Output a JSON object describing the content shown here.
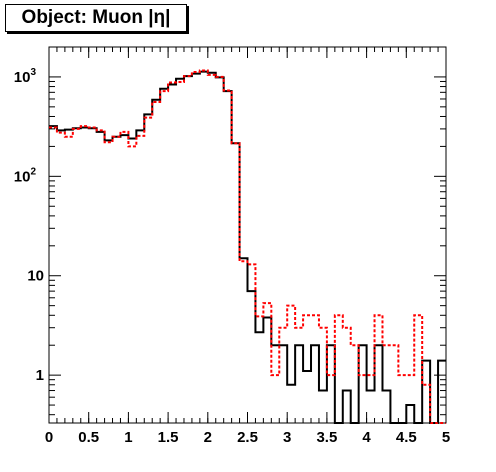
{
  "chart_data": {
    "type": "line",
    "title": "Object: Muon |η|",
    "xlabel": "",
    "ylabel": "",
    "xlim": [
      0,
      5
    ],
    "ylim": [
      0.33,
      2000
    ],
    "yscale": "log",
    "grid": false,
    "bin_width": 0.1,
    "bin_edges_start": 0,
    "x_ticks": [
      "0",
      "0.5",
      "1",
      "1.5",
      "2",
      "2.5",
      "3",
      "3.5",
      "4",
      "4.5",
      "5"
    ],
    "x_tick_values": [
      0,
      0.5,
      1,
      1.5,
      2,
      2.5,
      3,
      3.5,
      4,
      4.5,
      5
    ],
    "y_ticks": [
      {
        "value": 1,
        "base": "1",
        "exp": ""
      },
      {
        "value": 10,
        "base": "10",
        "exp": ""
      },
      {
        "value": 100,
        "base": "10",
        "exp": "2"
      },
      {
        "value": 1000,
        "base": "10",
        "exp": "3"
      }
    ],
    "series": [
      {
        "color": "#000000",
        "style": "solid",
        "values": [
          320,
          290,
          295,
          305,
          310,
          305,
          280,
          230,
          250,
          260,
          240,
          290,
          420,
          590,
          760,
          840,
          960,
          1020,
          1080,
          1130,
          1100,
          990,
          720,
          215,
          15,
          7,
          2.7,
          3.8,
          2.0,
          2.0,
          0.8,
          2.0,
          1.1,
          2.0,
          0.7,
          2.0,
          0.1,
          0.7,
          0.1,
          2.0,
          0.7,
          2.0,
          0.7,
          0.1,
          0.1,
          0.5,
          0.1,
          1.4,
          0.1,
          1.4
        ]
      },
      {
        "color": "#ff0000",
        "style": "dashed",
        "values": [
          310,
          275,
          250,
          300,
          320,
          310,
          290,
          220,
          250,
          280,
          200,
          255,
          390,
          560,
          720,
          880,
          890,
          1020,
          1120,
          1160,
          1050,
          1000,
          730,
          215,
          14,
          13,
          3.9,
          5.3,
          1.0,
          3.0,
          5.0,
          3.0,
          4.0,
          4.0,
          3.0,
          1.0,
          4.0,
          3.0,
          2.0,
          1.0,
          1.0,
          4.0,
          2.0,
          2.0,
          1.0,
          1.0,
          4.0,
          0.8,
          0.3,
          0.3
        ]
      }
    ]
  }
}
